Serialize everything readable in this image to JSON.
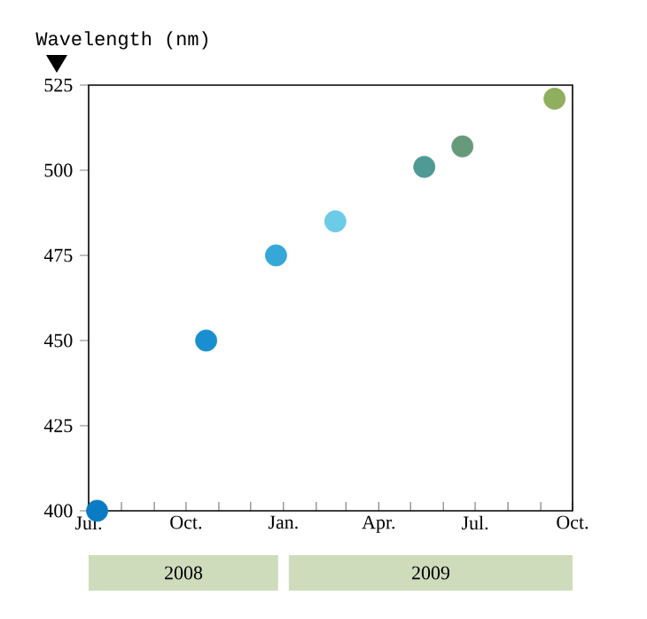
{
  "chart_data": {
    "type": "scatter",
    "ylabel": "Wavelength (nm)",
    "x": [
      "2008-07-09",
      "2008-10-20",
      "2008-12-25",
      "2009-02-19",
      "2009-05-14",
      "2009-06-19",
      "2009-09-14"
    ],
    "values": [
      400,
      450,
      475,
      485,
      501,
      507,
      521
    ],
    "colors": [
      "#0a7cc4",
      "#1a8fcf",
      "#35a8d8",
      "#6ccbe6",
      "#4f9a94",
      "#679a7a",
      "#8fae5e"
    ],
    "marker": "circle",
    "xlim": [
      "2008-07-01",
      "2009-10-01"
    ],
    "xticks": [
      {
        "value": "2008-07-01",
        "label": "Jul."
      },
      {
        "value": "2008-08-01",
        "label": null
      },
      {
        "value": "2008-09-01",
        "label": null
      },
      {
        "value": "2008-10-01",
        "label": "Oct."
      },
      {
        "value": "2008-11-01",
        "label": null
      },
      {
        "value": "2008-12-01",
        "label": null
      },
      {
        "value": "2009-01-01",
        "label": "Jan."
      },
      {
        "value": "2009-02-01",
        "label": null
      },
      {
        "value": "2009-03-01",
        "label": null
      },
      {
        "value": "2009-04-01",
        "label": "Apr."
      },
      {
        "value": "2009-05-01",
        "label": null
      },
      {
        "value": "2009-06-01",
        "label": null
      },
      {
        "value": "2009-07-01",
        "label": "Jul."
      },
      {
        "value": "2009-08-01",
        "label": null
      },
      {
        "value": "2009-09-01",
        "label": null
      },
      {
        "value": "2009-10-01",
        "label": "Oct."
      }
    ],
    "ylim": [
      400,
      525
    ],
    "yticks": [
      400,
      425,
      450,
      475,
      500,
      525
    ],
    "annotations": [
      "2008",
      "2009"
    ]
  }
}
